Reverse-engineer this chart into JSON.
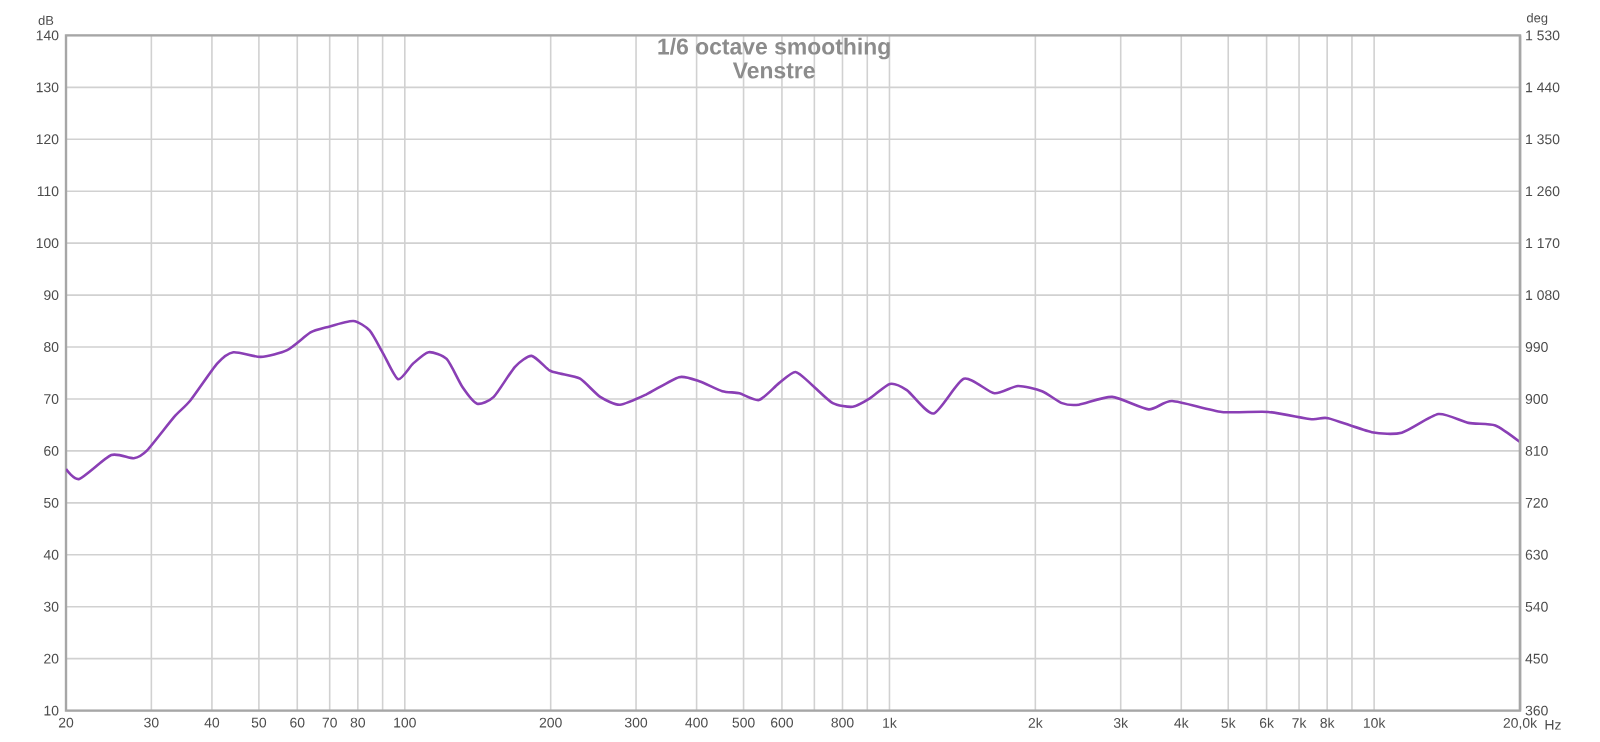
{
  "chart_data": {
    "type": "line",
    "title": "1/6 octave smoothing",
    "subtitle": "Venstre",
    "xlabel": "Hz",
    "ylabel": "dB",
    "y2label": "deg",
    "log": "x",
    "grid": true,
    "marker": "none",
    "line_style": "solid",
    "xlim": [
      20,
      20000
    ],
    "xticks": [
      20,
      30,
      40,
      50,
      60,
      70,
      80,
      {
        "value": 90,
        "label": null
      },
      100,
      200,
      300,
      400,
      500,
      600,
      {
        "value": 700,
        "label": null
      },
      800,
      {
        "value": 900,
        "label": null
      },
      {
        "value": 1000,
        "label": "1k"
      },
      {
        "value": 2000,
        "label": "2k"
      },
      {
        "value": 3000,
        "label": "3k"
      },
      {
        "value": 4000,
        "label": "4k"
      },
      {
        "value": 5000,
        "label": "5k"
      },
      {
        "value": 6000,
        "label": "6k"
      },
      {
        "value": 7000,
        "label": "7k"
      },
      {
        "value": 8000,
        "label": "8k"
      },
      {
        "value": 9000,
        "label": null
      },
      {
        "value": 10000,
        "label": "10k"
      },
      {
        "value": 20000,
        "label": "20,0k"
      }
    ],
    "ylim": [
      10,
      140
    ],
    "yticks": [
      10,
      20,
      30,
      40,
      50,
      60,
      70,
      80,
      90,
      100,
      110,
      120,
      130,
      140
    ],
    "y2lim": [
      360,
      1530
    ],
    "y2ticks": [
      360,
      450,
      540,
      630,
      720,
      810,
      900,
      990,
      {
        "value": 1080,
        "label": "1 080"
      },
      {
        "value": 1170,
        "label": "1 170"
      },
      {
        "value": 1260,
        "label": "1 260"
      },
      {
        "value": 1350,
        "label": "1 350"
      },
      {
        "value": 1440,
        "label": "1 440"
      },
      {
        "value": 1530,
        "label": "1 530"
      }
    ],
    "series": [
      {
        "color": "#8a3fb5",
        "x": [
          20,
          21.3,
          24.8,
          27.6,
          29.4,
          33.4,
          36.1,
          41.0,
          44.3,
          50.4,
          57.2,
          63.9,
          69.0,
          78.3,
          84.6,
          90.3,
          96.9,
          104,
          112,
          122,
          131.5,
          141,
          152.6,
          168.8,
          182.7,
          198.9,
          209,
          230,
          253,
          278,
          314,
          368,
          405,
          452,
          490,
          538,
          591,
          640,
          694,
          764,
          840,
          911,
          1002,
          1086,
          1233,
          1424,
          1646,
          1841,
          2064,
          2270,
          2460,
          2880,
          3427,
          3830,
          4850,
          6050,
          7430,
          8040,
          9890,
          11400,
          13570,
          15650,
          17790,
          20000
        ],
        "values": [
          56.5,
          54.6,
          59.2,
          58.6,
          60.1,
          66.5,
          69.7,
          76.8,
          79.0,
          78.1,
          79.4,
          82.8,
          83.8,
          85.0,
          83.2,
          78.7,
          73.8,
          76.8,
          79.0,
          77.7,
          72.3,
          69.1,
          70.4,
          76.2,
          78.3,
          75.5,
          74.9,
          73.9,
          70.4,
          68.9,
          70.8,
          74.2,
          73.4,
          71.5,
          71.1,
          69.8,
          73.0,
          75.2,
          72.6,
          69.2,
          68.5,
          70.1,
          72.9,
          71.7,
          67.2,
          73.9,
          71.1,
          72.5,
          71.5,
          69.2,
          68.9,
          70.4,
          68.0,
          69.6,
          67.5,
          67.5,
          66.1,
          66.3,
          63.6,
          63.5,
          67.1,
          65.4,
          64.9,
          61.7
        ]
      }
    ]
  }
}
